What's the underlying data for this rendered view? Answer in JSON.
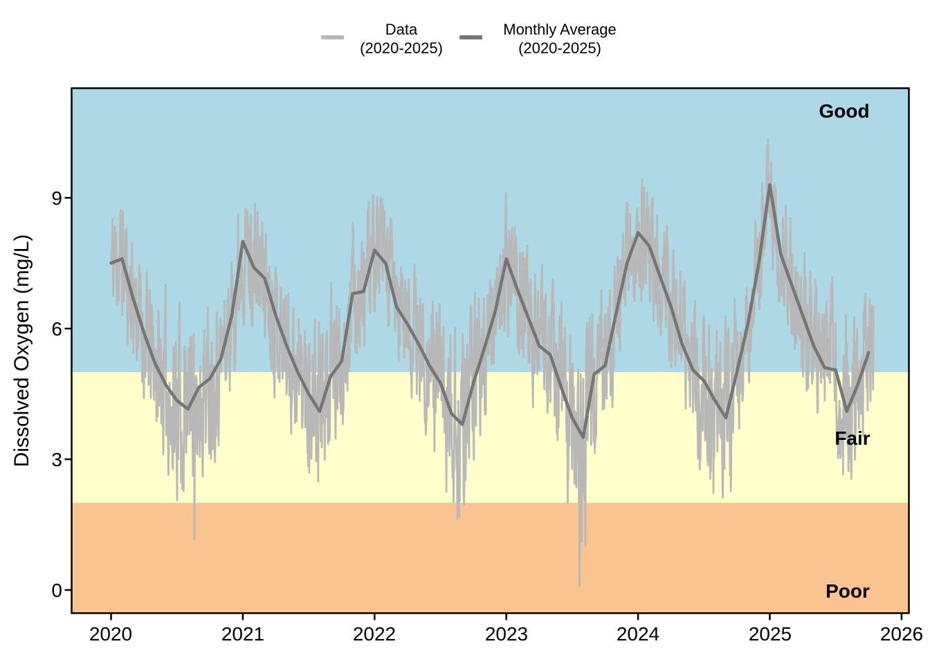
{
  "legend": {
    "items": [
      {
        "line1": "Data",
        "line2": "(2020-2025)",
        "color": "#B8B8B8"
      },
      {
        "line1": "Monthly Average",
        "line2": "(2020-2025)",
        "color": "#757575"
      }
    ]
  },
  "y_axis": {
    "title": "Dissolved Oxygen (mg/L)",
    "tick_labels": [
      "0",
      "3",
      "6",
      "9"
    ]
  },
  "x_axis": {
    "tick_labels": [
      "2020",
      "2021",
      "2022",
      "2023",
      "2024",
      "2025",
      "2026"
    ]
  },
  "zones": [
    {
      "label": "Good",
      "do_min": 5,
      "do_max": null,
      "color": "#ADD8E6"
    },
    {
      "label": "Fair",
      "do_min": 2,
      "do_max": 5,
      "color": "#FFFFCC"
    },
    {
      "label": "Poor",
      "do_min": null,
      "do_max": 2,
      "color": "#FAC490"
    }
  ],
  "chart_data": {
    "type": "line",
    "title": "",
    "xlabel": "",
    "ylabel": "Dissolved Oxygen (mg/L)",
    "y_ticks": [
      0,
      3,
      6,
      9
    ],
    "x_ticks": [
      2020,
      2021,
      2022,
      2023,
      2024,
      2025,
      2026
    ],
    "x_range": [
      2019.7,
      2026.07
    ],
    "y_range_shown": [
      -0.55,
      11.5
    ],
    "grid": false,
    "legend_position": "top-center",
    "quality_zones": [
      {
        "label": "Good",
        "range_mgL": [
          5,
          11.5
        ]
      },
      {
        "label": "Fair",
        "range_mgL": [
          2,
          5
        ]
      },
      {
        "label": "Poor",
        "range_mgL": [
          0,
          2
        ]
      }
    ],
    "series": [
      {
        "name": "Data (2020-2025)",
        "kind": "daily_noisy_observations",
        "color": "#B8B8B8",
        "description": "High-frequency observations oscillating around the monthly average; seasonal highs ~9-10.3 mg/L each winter, lows near 0.1-1.2 mg/L in late summer of 2022-2025, ~2.2 mg/L minima in 2020-2021.",
        "approx_extremes_mgL": {
          "max": 10.3,
          "min": 0.1
        },
        "render": "procedural",
        "noise_seed": 11,
        "noise_base_amp": 1.0,
        "end_time": 2025.79
      },
      {
        "name": "Monthly Average (2020-2025)",
        "kind": "monthly_mean_line",
        "color": "#757575",
        "start_month": "2020-01",
        "end_month": "2025-10",
        "values": [
          7.5,
          7.6,
          6.7,
          5.9,
          5.2,
          4.7,
          4.35,
          4.15,
          4.65,
          4.85,
          5.3,
          6.3,
          8.0,
          7.4,
          7.15,
          6.3,
          5.6,
          5.0,
          4.5,
          4.1,
          4.9,
          5.25,
          6.8,
          6.85,
          7.8,
          7.5,
          6.5,
          6.1,
          5.65,
          5.15,
          4.75,
          4.05,
          3.8,
          4.75,
          5.55,
          6.4,
          7.6,
          6.9,
          6.25,
          5.6,
          5.4,
          4.65,
          3.95,
          3.5,
          4.95,
          5.15,
          6.35,
          7.5,
          8.2,
          7.9,
          7.2,
          6.5,
          5.65,
          5.05,
          4.8,
          4.35,
          3.95,
          5.0,
          6.1,
          7.5,
          9.3,
          7.7,
          7.0,
          6.3,
          5.6,
          5.1,
          5.05,
          4.1,
          4.7,
          5.45
        ]
      }
    ]
  }
}
